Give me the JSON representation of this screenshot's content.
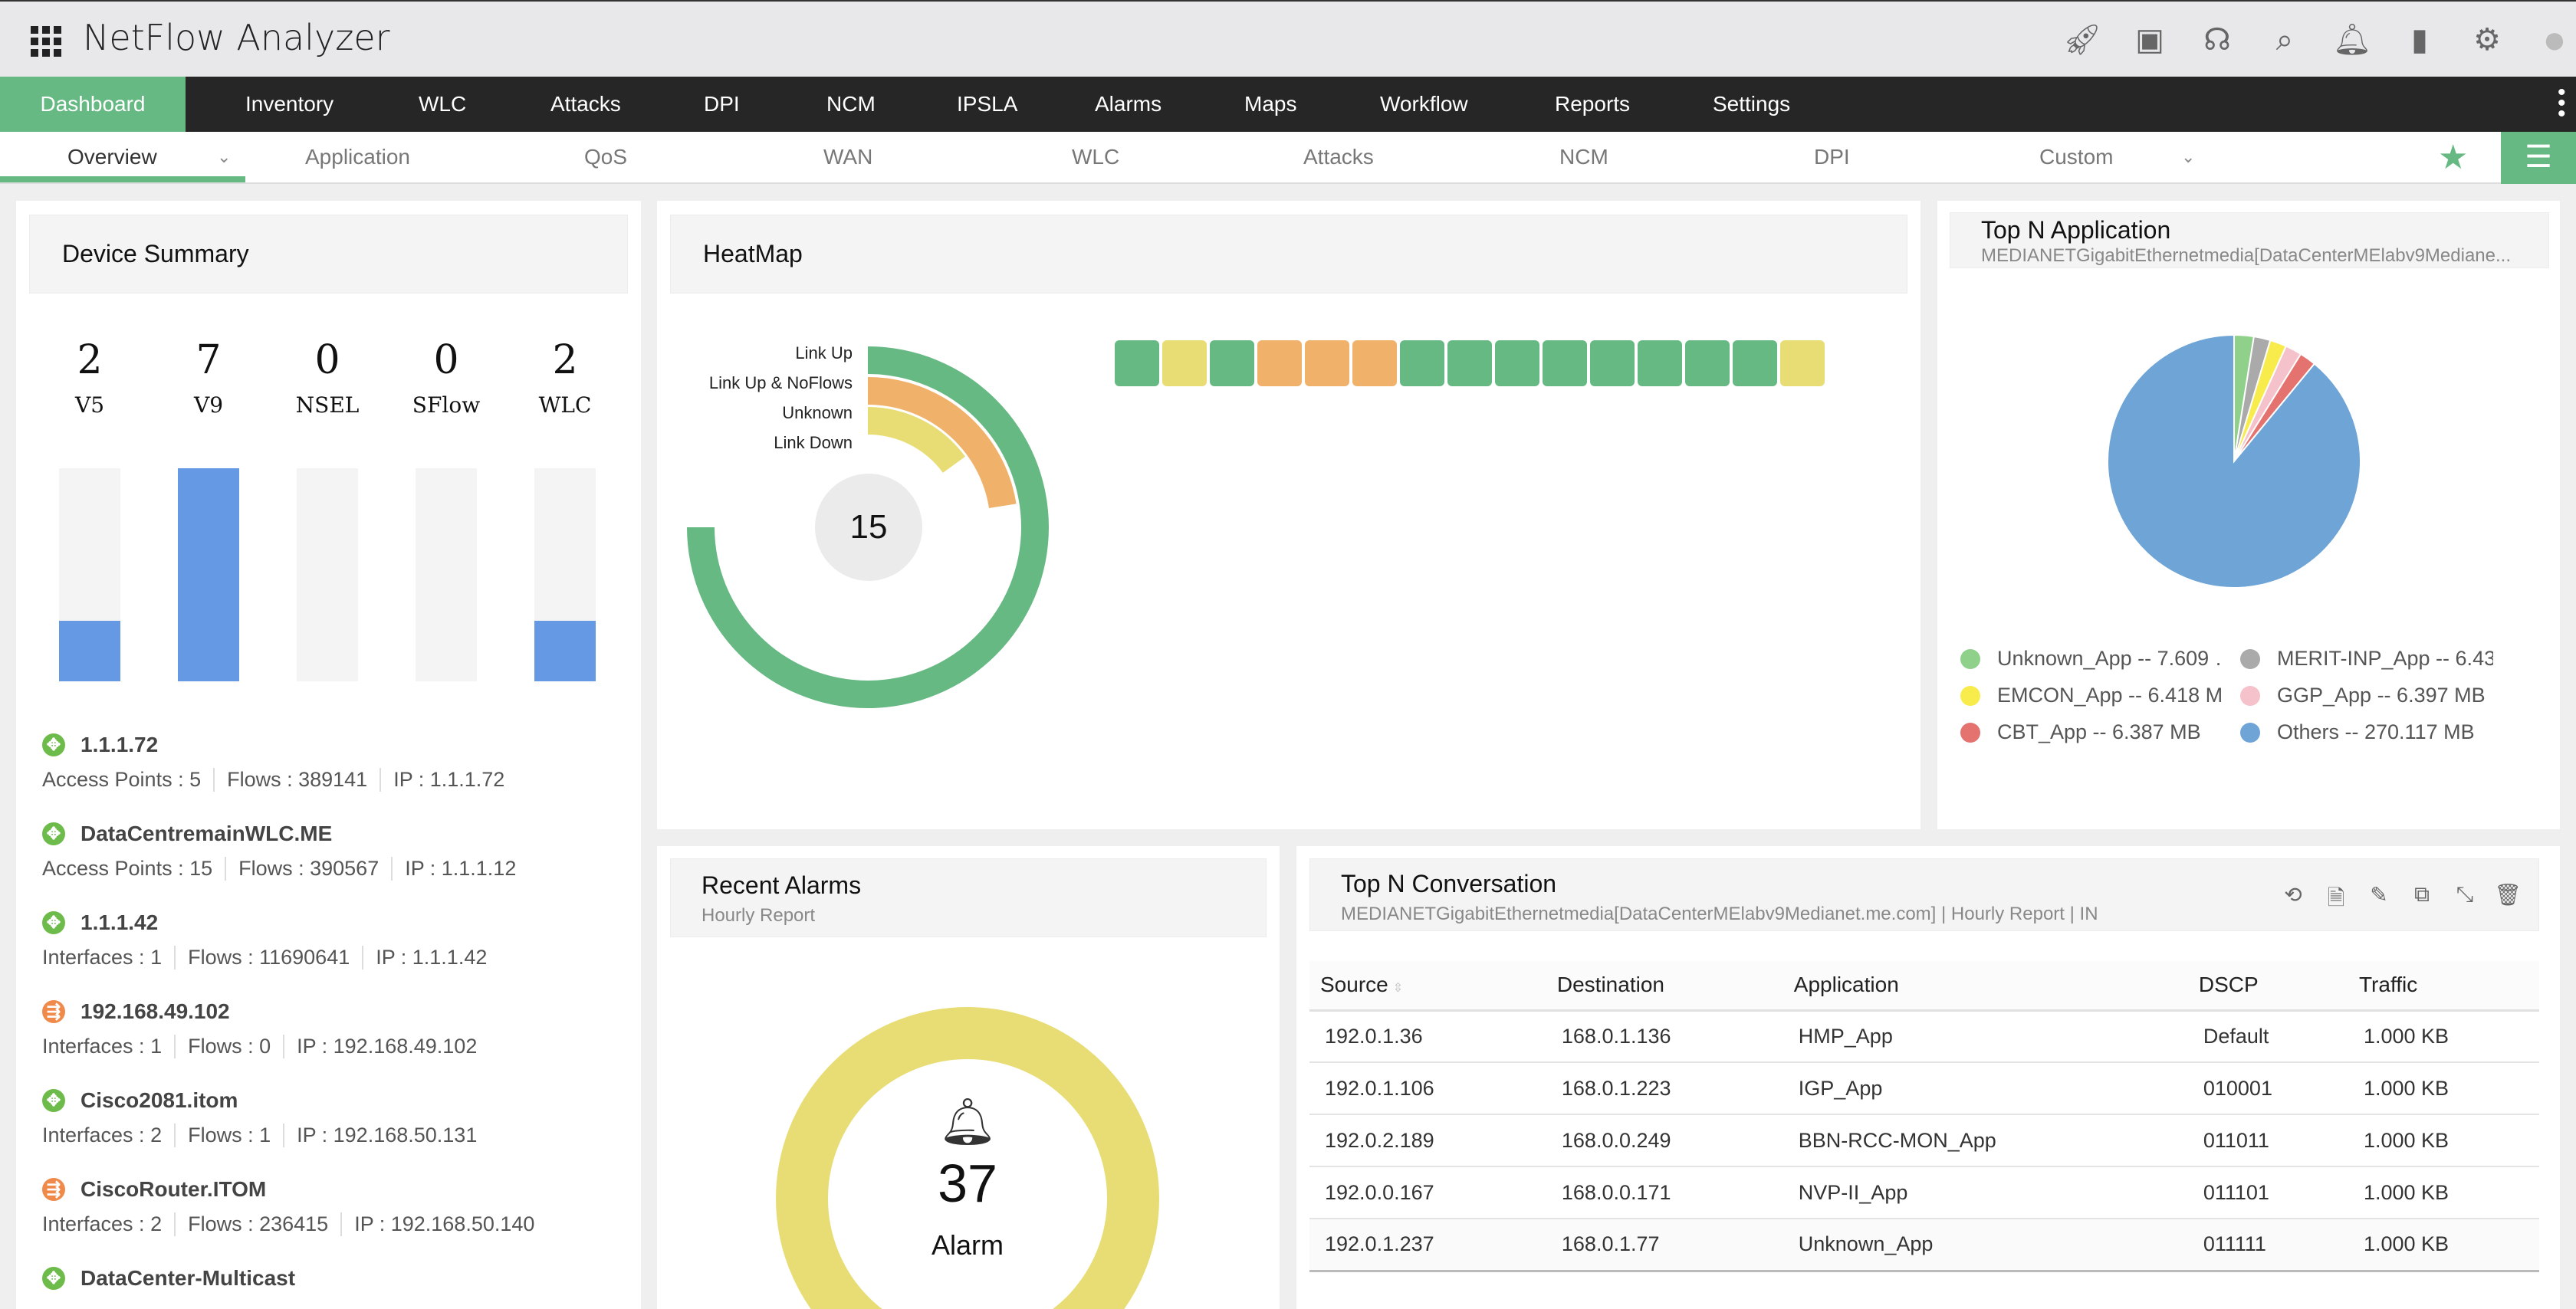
{
  "header": {
    "title": "NetFlow Analyzer",
    "icons": [
      "rocket-icon",
      "presentation-icon",
      "headset-icon",
      "search-icon",
      "bell-icon",
      "film-icon",
      "gear-icon",
      "avatar-icon"
    ]
  },
  "nav": {
    "items": [
      "Dashboard",
      "Inventory",
      "WLC",
      "Attacks",
      "DPI",
      "NCM",
      "IPSLA",
      "Alarms",
      "Maps",
      "Workflow",
      "Reports",
      "Settings"
    ],
    "active": "Dashboard"
  },
  "subnav": {
    "items": [
      "Overview",
      "Application",
      "QoS",
      "WAN",
      "WLC",
      "Attacks",
      "NCM",
      "DPI",
      "Custom"
    ],
    "active": "Overview"
  },
  "colors": {
    "accent": "#67b983",
    "bar": "#6599e3",
    "link_up": "#67b983",
    "noflows": "#f0b26a",
    "unknown": "#e8dd75"
  },
  "device_summary": {
    "title": "Device Summary",
    "counts": [
      {
        "label": "V5",
        "value": 2
      },
      {
        "label": "V9",
        "value": 7
      },
      {
        "label": "NSEL",
        "value": 0
      },
      {
        "label": "SFlow",
        "value": 0
      },
      {
        "label": "WLC",
        "value": 2
      }
    ],
    "devices": [
      {
        "name": "1.1.1.72",
        "type": "wlc",
        "meta": [
          "Access Points : 5",
          "Flows : 389141",
          "IP : 1.1.1.72"
        ]
      },
      {
        "name": "DataCentremainWLC.ME",
        "type": "wlc",
        "meta": [
          "Access Points : 15",
          "Flows : 390567",
          "IP : 1.1.1.12"
        ]
      },
      {
        "name": "1.1.1.42",
        "type": "wlc",
        "meta": [
          "Interfaces : 1",
          "Flows : 11690641",
          "IP : 1.1.1.42"
        ]
      },
      {
        "name": "192.168.49.102",
        "type": "router",
        "meta": [
          "Interfaces : 1",
          "Flows : 0",
          "IP : 192.168.49.102"
        ]
      },
      {
        "name": "Cisco2081.itom",
        "type": "wlc",
        "meta": [
          "Interfaces : 2",
          "Flows : 1",
          "IP : 192.168.50.131"
        ]
      },
      {
        "name": "CiscoRouter.ITOM",
        "type": "router",
        "meta": [
          "Interfaces : 2",
          "Flows : 236415",
          "IP : 192.168.50.140"
        ]
      },
      {
        "name": "DataCenter-Multicast",
        "type": "wlc",
        "meta": []
      }
    ]
  },
  "heatmap": {
    "title": "HeatMap",
    "total": "15",
    "legend": [
      "Link Up",
      "Link Up & NoFlows",
      "Unknown",
      "Link Down"
    ],
    "counts": {
      "Link Up": 10,
      "Link Up & NoFlows": 3,
      "Unknown": 2,
      "Link Down": 0
    },
    "tiles": [
      "up",
      "unknown",
      "up",
      "noflows",
      "noflows",
      "noflows",
      "up",
      "up",
      "up",
      "up",
      "up",
      "up",
      "up",
      "up",
      "unknown"
    ]
  },
  "top_app": {
    "title": "Top N Application",
    "subtitle": "MEDIANETGigabitEthernetmedia[DataCenterMElabv9Mediane...",
    "chart_data": {
      "type": "pie",
      "unit": "MB",
      "slices": [
        {
          "name": "Unknown_App",
          "value": 7.609,
          "color": "#8fd08a",
          "legend": "Unknown_App -- 7.609 …"
        },
        {
          "name": "MERIT-INP_App",
          "value": 6.43,
          "color": "#aaaaaa",
          "legend": "MERIT-INP_App -- 6.43…"
        },
        {
          "name": "EMCON_App",
          "value": 6.418,
          "color": "#f8eb4c",
          "legend": "EMCON_App -- 6.418 MB"
        },
        {
          "name": "GGP_App",
          "value": 6.397,
          "color": "#f5c1cb",
          "legend": "GGP_App -- 6.397 MB"
        },
        {
          "name": "CBT_App",
          "value": 6.387,
          "color": "#e4726f",
          "legend": "CBT_App -- 6.387 MB"
        },
        {
          "name": "Others",
          "value": 270.117,
          "color": "#6ea4d6",
          "legend": "Others -- 270.117 MB"
        }
      ]
    }
  },
  "alarms": {
    "title": "Recent Alarms",
    "subtitle": "Hourly Report",
    "count": "37",
    "label": "Alarm",
    "ring_color": "#e8dd75"
  },
  "conversation": {
    "title": "Top N Conversation",
    "subtitle": "MEDIANETGigabitEthernetmedia[DataCenterMElabv9Medianet.me.com] | Hourly Report | IN",
    "tools": [
      "refresh-icon",
      "pdf-icon",
      "edit-icon",
      "copy-icon",
      "expand-icon",
      "delete-icon"
    ],
    "columns": [
      "Source",
      "Destination",
      "Application",
      "DSCP",
      "Traffic"
    ],
    "rows": [
      [
        "192.0.1.36",
        "168.0.1.136",
        "HMP_App",
        "Default",
        "1.000 KB"
      ],
      [
        "192.0.1.106",
        "168.0.1.223",
        "IGP_App",
        "010001",
        "1.000 KB"
      ],
      [
        "192.0.2.189",
        "168.0.0.249",
        "BBN-RCC-MON_App",
        "011011",
        "1.000 KB"
      ],
      [
        "192.0.0.167",
        "168.0.0.171",
        "NVP-II_App",
        "011101",
        "1.000 KB"
      ],
      [
        "192.0.1.237",
        "168.0.1.77",
        "Unknown_App",
        "011111",
        "1.000 KB"
      ]
    ]
  }
}
